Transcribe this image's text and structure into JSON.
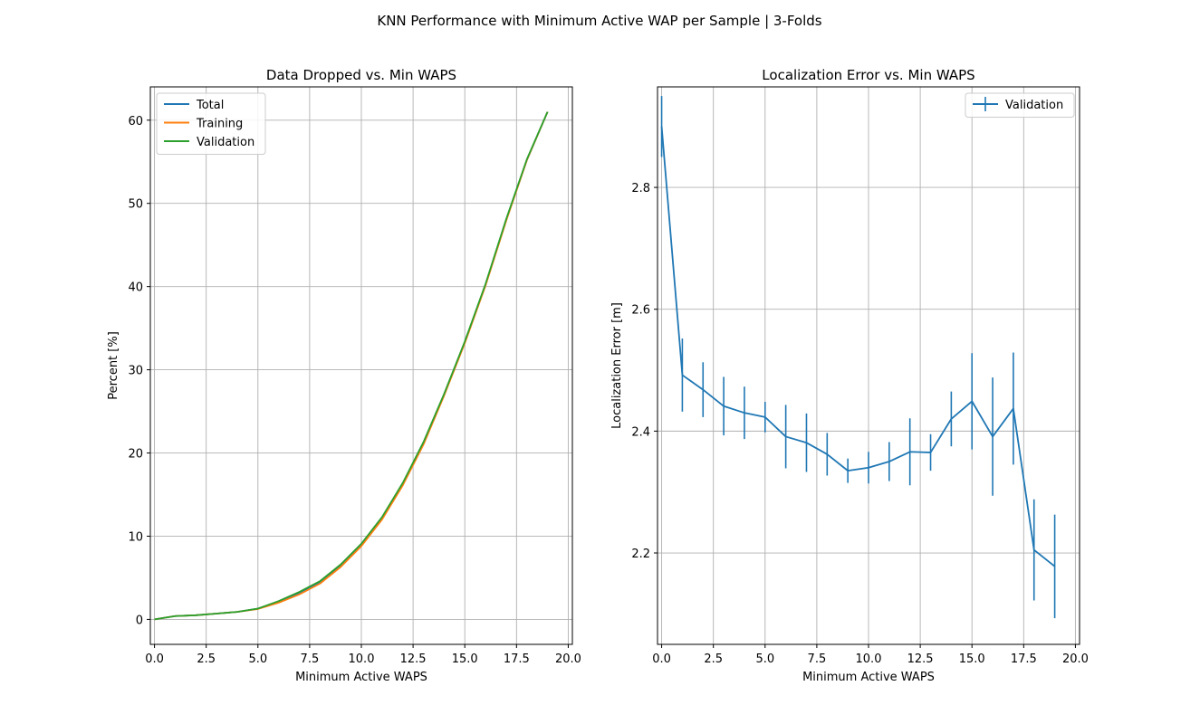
{
  "figure": {
    "suptitle": "KNN Performance with Minimum Active WAP per Sample | 3-Folds"
  },
  "chart_data": [
    {
      "type": "line",
      "title": "Data Dropped vs. Min WAPS",
      "xlabel": "Minimum Active WAPS",
      "ylabel": "Percent [%]",
      "xlim": [
        -0.2,
        20.2
      ],
      "ylim": [
        -3,
        64
      ],
      "xticks": [
        0.0,
        2.5,
        5.0,
        7.5,
        10.0,
        12.5,
        15.0,
        17.5,
        20.0
      ],
      "xtick_labels": [
        "0.0",
        "2.5",
        "5.0",
        "7.5",
        "10.0",
        "12.5",
        "15.0",
        "17.5",
        "20.0"
      ],
      "yticks": [
        0,
        10,
        20,
        30,
        40,
        50,
        60
      ],
      "ytick_labels": [
        "0",
        "10",
        "20",
        "30",
        "40",
        "50",
        "60"
      ],
      "grid": true,
      "legend": "upper-left",
      "x": [
        0,
        1,
        2,
        3,
        4,
        5,
        6,
        7,
        8,
        9,
        10,
        11,
        12,
        13,
        14,
        15,
        16,
        17,
        18,
        19
      ],
      "series": [
        {
          "name": "Total",
          "color": "#1f77b4",
          "values": [
            0.0,
            0.4,
            0.5,
            0.7,
            0.9,
            1.3,
            2.1,
            3.2,
            4.5,
            6.5,
            9.0,
            12.2,
            16.3,
            21.2,
            27.0,
            33.3,
            40.2,
            48.0,
            55.2,
            61.0
          ]
        },
        {
          "name": "Training",
          "color": "#ff7f0e",
          "values": [
            0.0,
            0.4,
            0.5,
            0.7,
            0.9,
            1.25,
            2.0,
            3.0,
            4.3,
            6.3,
            8.8,
            12.0,
            16.1,
            21.0,
            26.9,
            33.2,
            40.1,
            47.9,
            55.2,
            61.0
          ]
        },
        {
          "name": "Validation",
          "color": "#2ca02c",
          "values": [
            0.0,
            0.4,
            0.5,
            0.7,
            0.9,
            1.3,
            2.2,
            3.3,
            4.6,
            6.6,
            9.1,
            12.3,
            16.4,
            21.3,
            27.1,
            33.4,
            40.3,
            48.1,
            55.3,
            61.0
          ]
        }
      ]
    },
    {
      "type": "line",
      "title": "Localization Error vs. Min WAPS",
      "xlabel": "Minimum Active WAPS",
      "ylabel": "Localization Error [m]",
      "xlim": [
        -0.2,
        20.2
      ],
      "ylim": [
        2.05,
        2.965
      ],
      "xticks": [
        0.0,
        2.5,
        5.0,
        7.5,
        10.0,
        12.5,
        15.0,
        17.5,
        20.0
      ],
      "xtick_labels": [
        "0.0",
        "2.5",
        "5.0",
        "7.5",
        "10.0",
        "12.5",
        "15.0",
        "17.5",
        "20.0"
      ],
      "yticks": [
        2.2,
        2.4,
        2.6,
        2.8
      ],
      "ytick_labels": [
        "2.2",
        "2.4",
        "2.6",
        "2.8"
      ],
      "grid": true,
      "legend": "upper-right",
      "x": [
        0,
        1,
        2,
        3,
        4,
        5,
        6,
        7,
        8,
        9,
        10,
        11,
        12,
        13,
        14,
        15,
        16,
        17,
        18,
        19
      ],
      "series": [
        {
          "name": "Validation",
          "color": "#1f77b4",
          "values": [
            2.9,
            2.492,
            2.468,
            2.441,
            2.43,
            2.423,
            2.391,
            2.381,
            2.362,
            2.335,
            2.34,
            2.35,
            2.366,
            2.365,
            2.42,
            2.449,
            2.391,
            2.437,
            2.205,
            2.178
          ],
          "errors": [
            0.05,
            0.06,
            0.045,
            0.048,
            0.043,
            0.025,
            0.052,
            0.048,
            0.035,
            0.02,
            0.026,
            0.032,
            0.055,
            0.03,
            0.045,
            0.079,
            0.097,
            0.092,
            0.083,
            0.085
          ]
        }
      ]
    }
  ]
}
